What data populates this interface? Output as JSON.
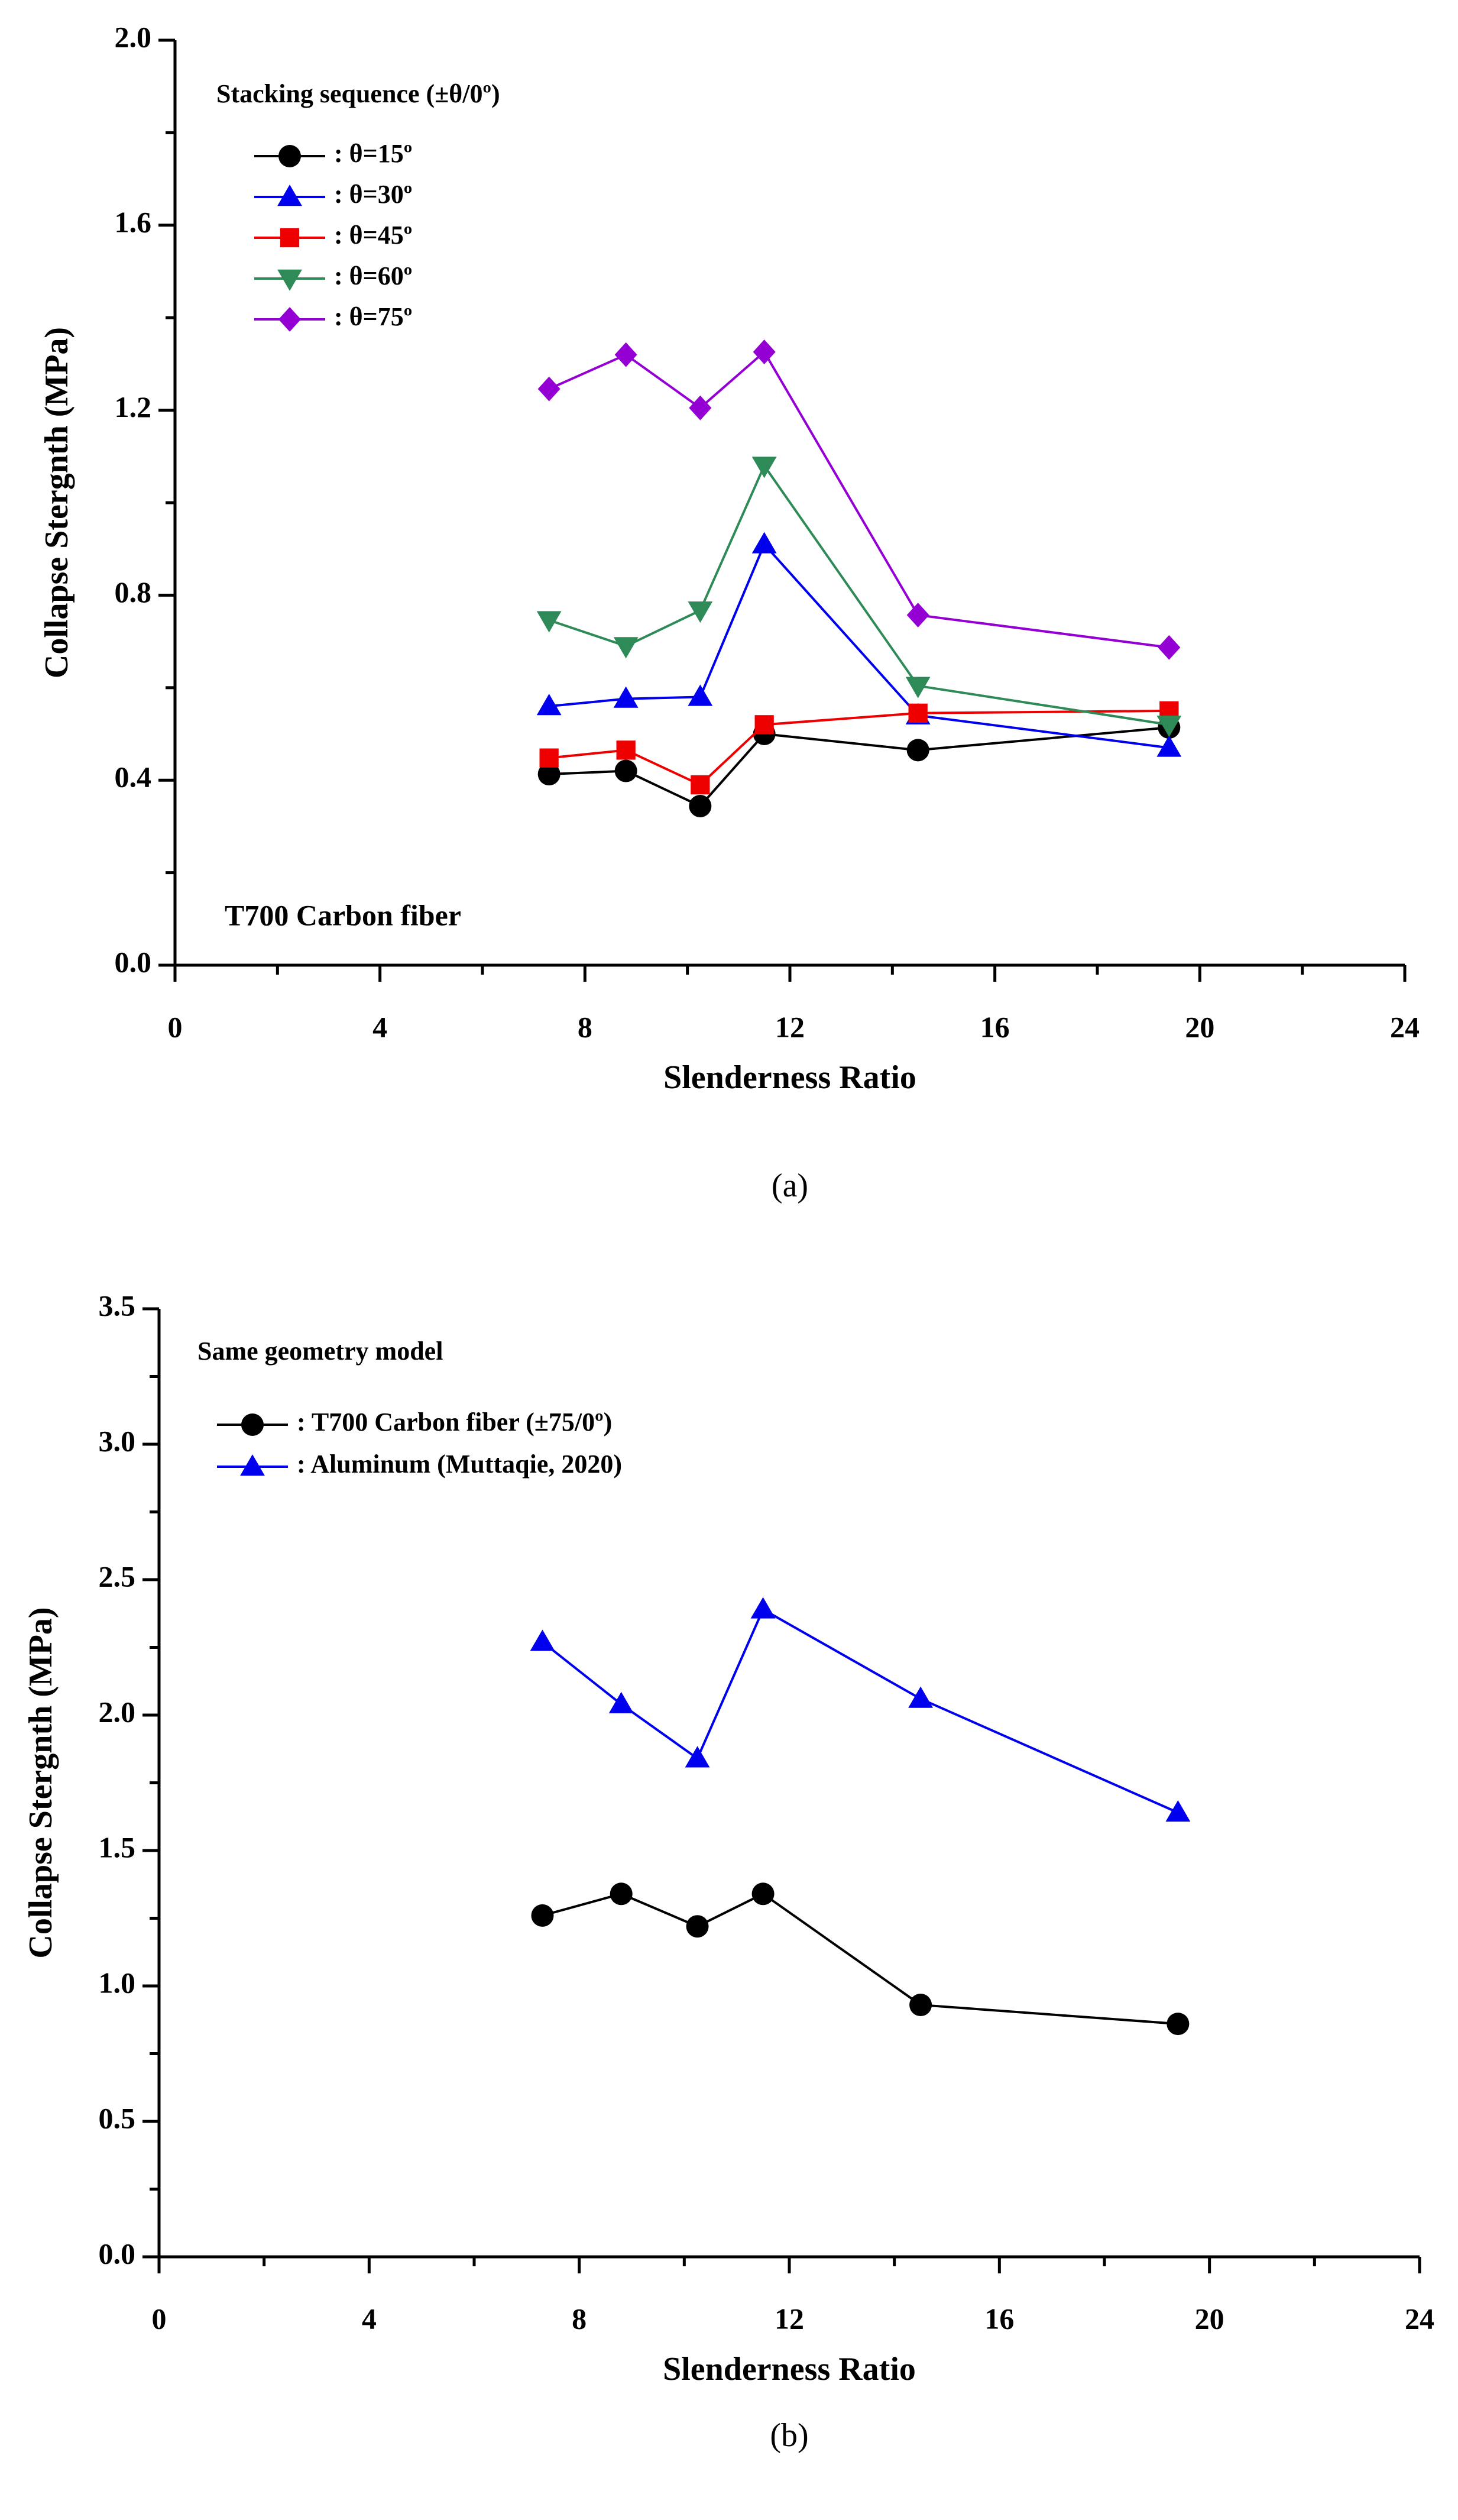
{
  "chart_data": [
    {
      "type": "line",
      "caption": "(a)",
      "xlabel": "Slenderness Ratio",
      "ylabel": "Collapse Stergnth (MPa)",
      "legend_title": "Stacking sequence (±θ/0º)",
      "legend": "upper left",
      "annotation": "T700 Carbon fiber",
      "x": [
        7.3,
        8.8,
        10.25,
        11.5,
        14.5,
        19.4
      ],
      "xlim": [
        0,
        24
      ],
      "xticks": [
        0,
        4,
        8,
        12,
        16,
        20,
        24
      ],
      "ylim": [
        0,
        2.0
      ],
      "yticks": [
        {
          "value": 0,
          "label": "0.0"
        },
        {
          "value": 0.4,
          "label": "0.4"
        },
        {
          "value": 0.8,
          "label": "0.8"
        },
        {
          "value": 1.2,
          "label": "1.2"
        },
        {
          "value": 1.6,
          "label": "1.6"
        },
        {
          "value": 2.0,
          "label": "2.0"
        }
      ],
      "series": [
        {
          "name": ": θ=15º",
          "color": "#000000",
          "marker": "circle",
          "values": [
            0.413,
            0.42,
            0.344,
            0.5,
            0.465,
            0.514
          ]
        },
        {
          "name": ": θ=30º",
          "color": "#0000ee",
          "marker": "triangle",
          "values": [
            0.56,
            0.576,
            0.58,
            0.91,
            0.54,
            0.47
          ]
        },
        {
          "name": ": θ=45º",
          "color": "#ee0000",
          "marker": "square",
          "values": [
            0.448,
            0.465,
            0.39,
            0.52,
            0.545,
            0.55
          ]
        },
        {
          "name": ": θ=60º",
          "color": "#2e8b57",
          "marker": "triangle-down",
          "values": [
            0.746,
            0.69,
            0.767,
            1.08,
            0.604,
            0.52
          ]
        },
        {
          "name": ": θ=75º",
          "color": "#9400d3",
          "marker": "diamond",
          "values": [
            1.246,
            1.32,
            1.205,
            1.326,
            0.757,
            0.687
          ]
        }
      ]
    },
    {
      "type": "line",
      "caption": "(b)",
      "xlabel": "Slenderness Ratio",
      "ylabel": "Collapse Stergnth (MPa)",
      "legend_title": "Same geometry model",
      "legend": "upper left",
      "x": [
        7.3,
        8.8,
        10.25,
        11.5,
        14.5,
        19.4
      ],
      "xlim": [
        0,
        24
      ],
      "xticks": [
        0,
        4,
        8,
        12,
        16,
        20,
        24
      ],
      "ylim": [
        0,
        3.5
      ],
      "yticks": [
        {
          "value": 0,
          "label": "0.0"
        },
        0.5,
        {
          "value": 1,
          "label": "1.0"
        },
        1.5,
        {
          "value": 2,
          "label": "2.0"
        },
        2.5,
        {
          "value": 3,
          "label": "3.0"
        },
        3.5
      ],
      "series": [
        {
          "name": ": T700 Carbon fiber (±75/0º)",
          "color": "#000000",
          "marker": "circle",
          "values": [
            1.26,
            1.34,
            1.22,
            1.34,
            0.93,
            0.86
          ]
        },
        {
          "name": ": Aluminum (Muttaqie, 2020)",
          "color": "#0000ee",
          "marker": "triangle",
          "values": [
            2.27,
            2.04,
            1.84,
            2.39,
            2.06,
            1.64
          ]
        }
      ]
    }
  ]
}
